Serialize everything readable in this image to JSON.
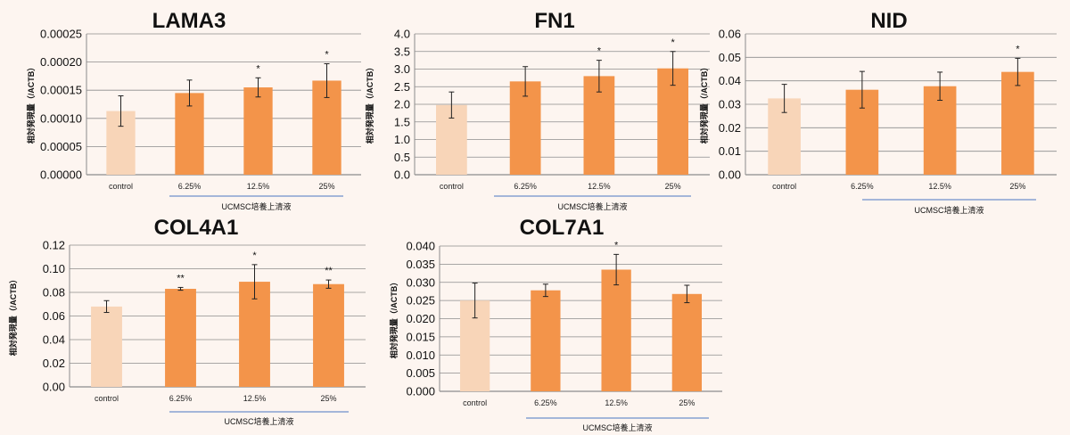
{
  "chart_data": [
    {
      "type": "bar",
      "title": "LAMA3",
      "categories": [
        "control",
        "6.25%",
        "12.5%",
        "25%"
      ],
      "values": [
        0.000113,
        0.000145,
        0.000155,
        0.000167
      ],
      "errors": [
        2.7e-05,
        2.3e-05,
        1.7e-05,
        3e-05
      ],
      "significance": [
        "",
        "",
        "*",
        "*"
      ],
      "ylim": [
        0,
        0.00025
      ],
      "yticks": [
        "0.00000",
        "0.00005",
        "0.00010",
        "0.00015",
        "0.00020",
        "0.00025"
      ],
      "ylabel": "相対発現量（/ACTB）",
      "group_label": "UCMSC培養上清液",
      "colors": [
        "#f8d5b8",
        "#f3944a",
        "#f3944a",
        "#f3944a"
      ]
    },
    {
      "type": "bar",
      "title": "FN1",
      "categories": [
        "control",
        "6.25%",
        "12.5%",
        "25%"
      ],
      "values": [
        1.98,
        2.65,
        2.8,
        3.02
      ],
      "errors": [
        0.37,
        0.42,
        0.45,
        0.48
      ],
      "significance": [
        "",
        "",
        "*",
        "*"
      ],
      "ylim": [
        0,
        4.0
      ],
      "yticks": [
        "0.0",
        "0.5",
        "1.0",
        "1.5",
        "2.0",
        "2.5",
        "3.0",
        "3.5",
        "4.0"
      ],
      "ylabel": "相対発現量（/ACTB）",
      "group_label": "UCMSC培養上清液",
      "colors": [
        "#f8d5b8",
        "#f3944a",
        "#f3944a",
        "#f3944a"
      ]
    },
    {
      "type": "bar",
      "title": "NID",
      "categories": [
        "control",
        "6.25%",
        "12.5%",
        "25%"
      ],
      "values": [
        0.0325,
        0.0362,
        0.0377,
        0.0438
      ],
      "errors": [
        0.006,
        0.0078,
        0.006,
        0.0058
      ],
      "significance": [
        "",
        "",
        "",
        "*"
      ],
      "ylim": [
        0,
        0.06
      ],
      "yticks": [
        "0.00",
        "0.01",
        "0.02",
        "0.03",
        "0.04",
        "0.05",
        "0.06"
      ],
      "ylabel": "相対発現量（/ACTB）",
      "group_label": "UCMSC培養上清液",
      "colors": [
        "#f8d5b8",
        "#f3944a",
        "#f3944a",
        "#f3944a"
      ]
    },
    {
      "type": "bar",
      "title": "COL4A1",
      "categories": [
        "control",
        "6.25%",
        "12.5%",
        "25%"
      ],
      "values": [
        0.068,
        0.083,
        0.089,
        0.087
      ],
      "errors": [
        0.005,
        0.0012,
        0.0145,
        0.0035
      ],
      "significance": [
        "",
        "**",
        "*",
        "**"
      ],
      "ylim": [
        0,
        0.12
      ],
      "yticks": [
        "0.00",
        "0.02",
        "0.04",
        "0.06",
        "0.08",
        "0.10",
        "0.12"
      ],
      "ylabel": "相対発現量（/ACTB）",
      "group_label": "UCMSC培養上清液",
      "colors": [
        "#f8d5b8",
        "#f3944a",
        "#f3944a",
        "#f3944a"
      ]
    },
    {
      "type": "bar",
      "title": "COL7A1",
      "categories": [
        "control",
        "6.25%",
        "12.5%",
        "25%"
      ],
      "values": [
        0.025,
        0.0278,
        0.0335,
        0.0268
      ],
      "errors": [
        0.0048,
        0.0017,
        0.0042,
        0.0024
      ],
      "significance": [
        "",
        "",
        "*",
        ""
      ],
      "ylim": [
        0,
        0.04
      ],
      "yticks": [
        "0.000",
        "0.005",
        "0.010",
        "0.015",
        "0.020",
        "0.025",
        "0.030",
        "0.035",
        "0.040"
      ],
      "ylabel": "相対発現量（/ACTB）",
      "group_label": "UCMSC培養上清液",
      "colors": [
        "#f8d5b8",
        "#f3944a",
        "#f3944a",
        "#f3944a"
      ]
    }
  ],
  "colors": {
    "background": "#fdf5f0",
    "grid": "#8c8c8c",
    "bracket": "#4a78c2"
  }
}
